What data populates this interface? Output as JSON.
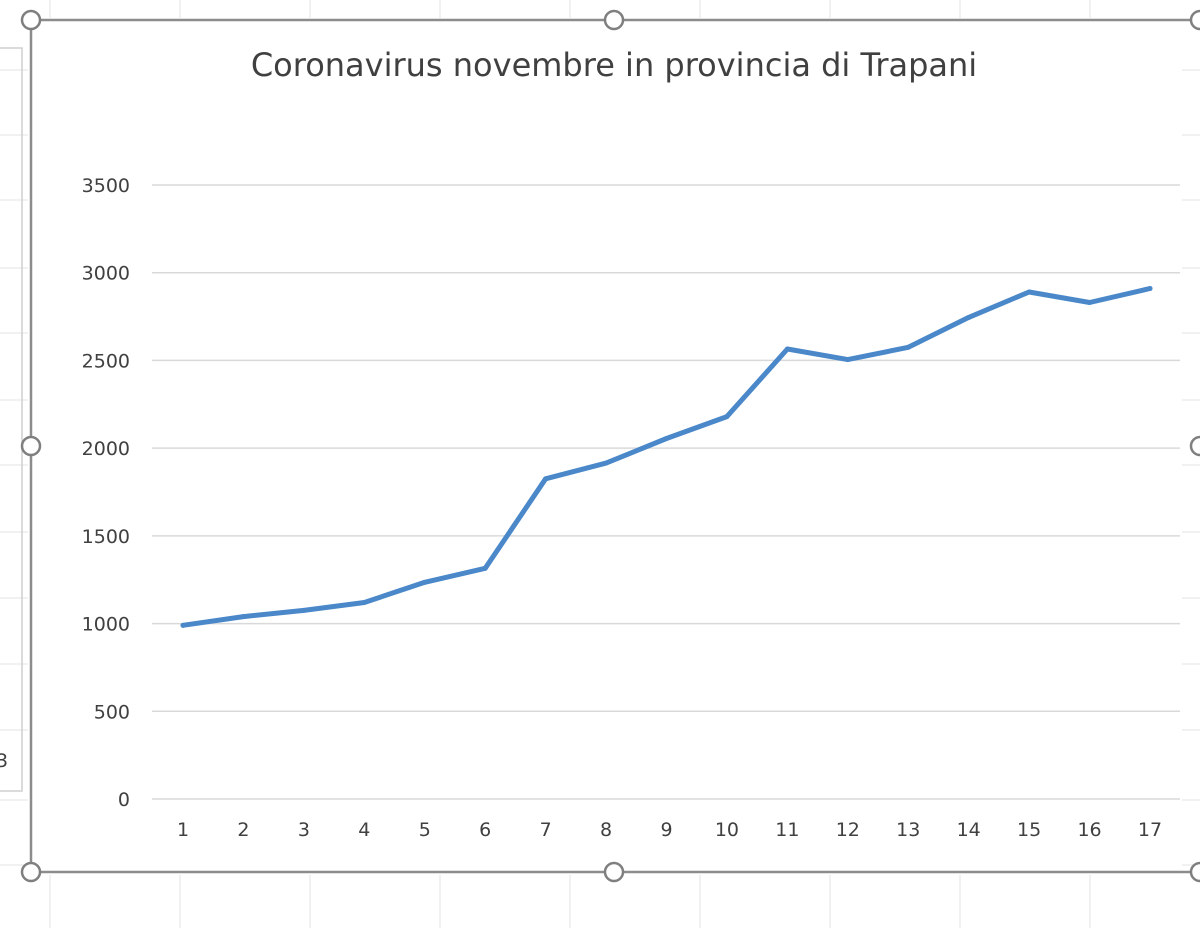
{
  "spreadsheet": {
    "partial_cell_text": "3"
  },
  "chart_data": {
    "type": "line",
    "title": "Coronavirus novembre in provincia di Trapani",
    "xlabel": "",
    "ylabel": "",
    "x": [
      1,
      2,
      3,
      4,
      5,
      6,
      7,
      8,
      9,
      10,
      11,
      12,
      13,
      14,
      15,
      16,
      17
    ],
    "series": [
      {
        "values": [
          990,
          1040,
          1075,
          1120,
          1235,
          1315,
          1825,
          1915,
          2055,
          2180,
          2565,
          2505,
          2575,
          2745,
          2890,
          2830,
          2910
        ],
        "color": "#4a88c9"
      }
    ],
    "yticks": [
      0,
      500,
      1000,
      1500,
      2000,
      2500,
      3000,
      3500
    ],
    "ylim": [
      0,
      3500
    ],
    "grid": true,
    "legend": "none"
  }
}
